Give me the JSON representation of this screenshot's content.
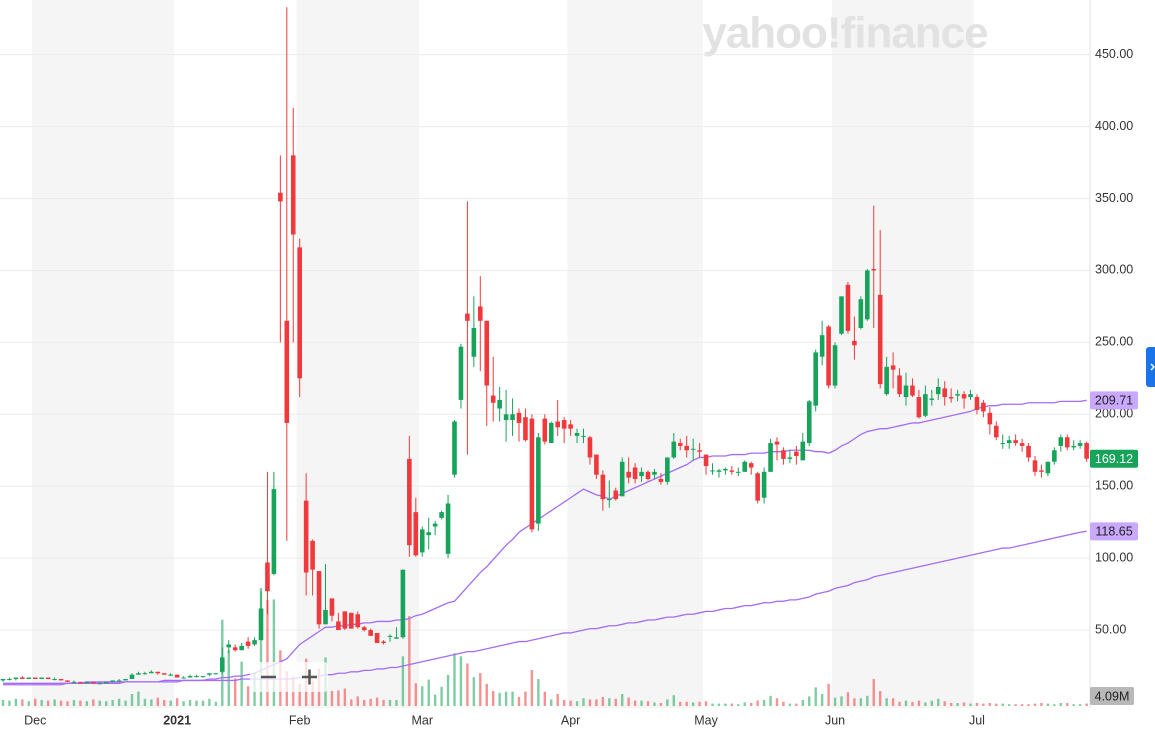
{
  "chart_data": {
    "type": "candlestick",
    "watermark": "yahoo!finance",
    "categories": [
      null,
      null,
      null,
      null,
      null,
      "Dec",
      null,
      null,
      null,
      null,
      null,
      null,
      null,
      null,
      null,
      null,
      null,
      null,
      null,
      null,
      null,
      null,
      null,
      null,
      null,
      null,
      null,
      "2021",
      null,
      null,
      null,
      null,
      null,
      null,
      null,
      null,
      null,
      null,
      null,
      null,
      null,
      null,
      null,
      null,
      null,
      null,
      "Feb",
      null,
      null,
      null,
      null,
      null,
      null,
      null,
      null,
      null,
      null,
      null,
      null,
      null,
      null,
      null,
      null,
      null,
      null,
      "Mar",
      null,
      null,
      null,
      null,
      null,
      null,
      null,
      null,
      null,
      null,
      null,
      null,
      null,
      null,
      null,
      null,
      null,
      null,
      null,
      null,
      null,
      null,
      "Apr",
      null,
      null,
      null,
      null,
      null,
      null,
      null,
      null,
      null,
      null,
      null,
      null,
      null,
      null,
      null,
      null,
      null,
      null,
      null,
      null,
      "May",
      null,
      null,
      null,
      null,
      null,
      null,
      null,
      null,
      null,
      null,
      null,
      null,
      null,
      null,
      null,
      null,
      null,
      null,
      null,
      "Jun",
      null,
      null,
      null,
      null,
      null,
      null,
      null,
      null,
      null,
      null,
      null,
      null,
      null,
      null,
      null,
      null,
      null,
      null,
      null,
      null,
      null,
      "Jul",
      null,
      null,
      null,
      null,
      null,
      null,
      null,
      null,
      null,
      null,
      null,
      null,
      null,
      null,
      null,
      null,
      null
    ],
    "open": [
      15,
      16,
      16,
      17,
      16,
      17,
      16,
      17,
      16,
      16,
      15,
      14,
      14,
      13,
      14,
      13,
      13,
      14,
      15,
      15,
      16,
      19,
      20,
      20,
      21,
      20,
      19,
      19,
      17,
      17,
      18,
      18,
      19,
      20,
      21,
      38,
      38,
      36,
      42,
      40,
      43,
      97,
      89,
      354,
      265,
      380,
      316,
      140,
      112,
      91,
      54,
      72,
      56,
      63,
      62,
      61,
      52,
      50,
      48,
      42,
      46,
      44,
      45,
      169,
      132,
      104,
      116,
      122,
      128,
      103,
      158,
      210,
      270,
      240,
      275,
      265,
      213,
      204,
      196,
      196,
      201,
      198,
      197,
      124,
      197,
      180,
      195,
      196,
      193,
      185,
      185,
      184,
      172,
      158,
      141,
      147,
      143,
      160,
      163,
      157,
      160,
      158,
      155,
      153,
      170,
      180,
      178,
      176,
      175,
      172,
      161,
      160,
      161,
      161,
      160,
      160,
      166,
      159,
      142,
      160,
      181,
      175,
      169,
      174,
      168,
      180,
      206,
      240,
      261,
      220,
      256,
      290,
      251,
      260,
      266,
      301,
      283,
      214,
      234,
      227,
      212,
      220,
      212,
      199,
      210,
      214,
      218,
      212,
      213,
      214,
      212,
      212,
      208,
      201,
      192,
      180,
      180,
      182,
      180,
      178,
      168,
      161,
      159,
      167,
      178,
      184,
      177,
      178,
      180
    ],
    "high": [
      16,
      17,
      17,
      18,
      17,
      17,
      17,
      17,
      17,
      16,
      15,
      15,
      14,
      14,
      14,
      14,
      14,
      15,
      16,
      16,
      20,
      21,
      21,
      22,
      21,
      20,
      20,
      19,
      18,
      19,
      19,
      18,
      20,
      20,
      38,
      43,
      40,
      41,
      45,
      45,
      77,
      160,
      160,
      380,
      483,
      413,
      322,
      159,
      113,
      91,
      96,
      72,
      62,
      63,
      62,
      63,
      53,
      51,
      48,
      43,
      47,
      52,
      92,
      185,
      142,
      122,
      128,
      126,
      133,
      144,
      196,
      249,
      348,
      282,
      296,
      265,
      240,
      219,
      217,
      211,
      204,
      204,
      200,
      187,
      200,
      195,
      210,
      198,
      196,
      190,
      190,
      185,
      172,
      161,
      154,
      149,
      170,
      170,
      166,
      163,
      161,
      162,
      159,
      170,
      187,
      183,
      185,
      183,
      180,
      172,
      166,
      162,
      163,
      164,
      163,
      168,
      167,
      160,
      163,
      183,
      184,
      177,
      175,
      178,
      187,
      210,
      245,
      265,
      262,
      250,
      282,
      292,
      268,
      282,
      301,
      345,
      328,
      240,
      243,
      232,
      229,
      225,
      217,
      220,
      217,
      225,
      223,
      218,
      217,
      216,
      217,
      214,
      210,
      205,
      195,
      186,
      185,
      186,
      183,
      180,
      171,
      165,
      167,
      177,
      186,
      186,
      182,
      182,
      181
    ],
    "low": [
      14,
      15,
      15,
      16,
      16,
      16,
      16,
      16,
      15,
      15,
      14,
      13,
      13,
      13,
      13,
      13,
      13,
      14,
      14,
      15,
      16,
      19,
      19,
      20,
      19,
      19,
      18,
      17,
      17,
      17,
      17,
      17,
      18,
      19,
      20,
      34,
      35,
      36,
      37,
      39,
      43,
      61,
      88,
      250,
      112,
      250,
      212,
      74,
      74,
      51,
      54,
      56,
      50,
      50,
      51,
      51,
      49,
      46,
      41,
      40,
      42,
      44,
      44,
      101,
      101,
      101,
      106,
      116,
      127,
      100,
      156,
      204,
      172,
      233,
      230,
      192,
      195,
      195,
      181,
      185,
      181,
      181,
      118,
      119,
      179,
      180,
      185,
      180,
      185,
      180,
      180,
      165,
      155,
      133,
      135,
      140,
      143,
      152,
      152,
      153,
      154,
      155,
      151,
      151,
      169,
      175,
      170,
      168,
      170,
      158,
      158,
      156,
      158,
      158,
      157,
      160,
      158,
      138,
      138,
      160,
      168,
      165,
      166,
      165,
      168,
      178,
      202,
      234,
      218,
      218,
      255,
      256,
      238,
      259,
      265,
      260,
      218,
      213,
      218,
      212,
      206,
      212,
      197,
      198,
      206,
      210,
      206,
      208,
      209,
      204,
      210,
      200,
      198,
      186,
      182,
      176,
      176,
      178,
      174,
      167,
      157,
      156,
      157,
      165,
      174,
      175,
      175,
      176,
      167
    ],
    "close": [
      16,
      16,
      17,
      16,
      17,
      16,
      17,
      16,
      16,
      15,
      14,
      14,
      13,
      14,
      13,
      13,
      14,
      15,
      15,
      16,
      19,
      20,
      20,
      21,
      20,
      19,
      19,
      17,
      17,
      18,
      18,
      18,
      20,
      20,
      31,
      40,
      36,
      39,
      39,
      43,
      65,
      77,
      148,
      348,
      194,
      325,
      225,
      90,
      92,
      54,
      64,
      60,
      50,
      51,
      51,
      52,
      50,
      46,
      41,
      41,
      46,
      45,
      92,
      109,
      102,
      120,
      118,
      124,
      132,
      138,
      195,
      247,
      265,
      260,
      265,
      220,
      208,
      210,
      200,
      200,
      194,
      182,
      120,
      184,
      181,
      194,
      191,
      190,
      190,
      187,
      185,
      170,
      158,
      141,
      141,
      141,
      167,
      156,
      155,
      160,
      155,
      160,
      153,
      170,
      181,
      178,
      175,
      176,
      174,
      164,
      161,
      161,
      162,
      160,
      160,
      167,
      163,
      140,
      160,
      180,
      179,
      169,
      170,
      171,
      181,
      209,
      243,
      255,
      220,
      248,
      282,
      258,
      248,
      280,
      300,
      300,
      221,
      233,
      231,
      214,
      220,
      213,
      198,
      214,
      211,
      219,
      212,
      211,
      214,
      211,
      214,
      203,
      202,
      193,
      184,
      180,
      182,
      180,
      178,
      170,
      160,
      160,
      167,
      175,
      184,
      177,
      178,
      180,
      169.12
    ],
    "volume": {
      "values": [
        10,
        9,
        12,
        11,
        8,
        12,
        10,
        9,
        11,
        9,
        8,
        10,
        9,
        8,
        11,
        9,
        8,
        10,
        12,
        9,
        20,
        24,
        12,
        11,
        14,
        10,
        9,
        13,
        8,
        10,
        9,
        9,
        12,
        7,
        144,
        93,
        46,
        74,
        33,
        56,
        197,
        177,
        178,
        93,
        58,
        50,
        37,
        79,
        42,
        62,
        81,
        25,
        26,
        29,
        11,
        16,
        10,
        12,
        14,
        10,
        10,
        10,
        83,
        150,
        38,
        33,
        44,
        19,
        32,
        52,
        88,
        83,
        71,
        48,
        55,
        37,
        25,
        22,
        24,
        24,
        15,
        24,
        60,
        45,
        24,
        11,
        20,
        10,
        9,
        8,
        13,
        11,
        11,
        15,
        13,
        12,
        20,
        14,
        9,
        9,
        8,
        6,
        5,
        11,
        18,
        7,
        7,
        6,
        7,
        8,
        4,
        4,
        4,
        4,
        3,
        6,
        5,
        9,
        10,
        17,
        13,
        7,
        4,
        4,
        10,
        16,
        31,
        20,
        37,
        14,
        16,
        23,
        13,
        13,
        17,
        45,
        25,
        13,
        13,
        7,
        9,
        7,
        9,
        6,
        9,
        12,
        8,
        5,
        5,
        6,
        4,
        5,
        4,
        5,
        4,
        4,
        3,
        3,
        3,
        3,
        4,
        5,
        4,
        3,
        5,
        5,
        3,
        3,
        4.09
      ],
      "last_label": "4.09M"
    },
    "moving_averages": [
      {
        "color": "#a66cf5",
        "values": [
          13,
          13,
          13,
          13,
          13,
          13,
          13,
          13,
          13,
          13,
          13,
          13,
          13,
          14,
          14,
          14,
          14,
          14,
          14,
          14,
          14,
          14,
          14,
          14,
          14,
          15,
          15,
          15,
          15,
          15,
          15,
          15,
          16,
          16,
          17,
          17,
          18,
          18,
          19,
          20,
          22,
          24,
          26,
          28,
          30,
          35,
          40,
          43,
          46,
          49,
          52,
          52,
          53,
          53,
          54,
          54,
          55,
          55,
          56,
          56,
          56,
          57,
          57,
          58,
          60,
          61,
          63,
          65,
          67,
          69,
          70,
          75,
          80,
          85,
          90,
          94,
          99,
          104,
          109,
          113,
          118,
          121,
          124,
          127,
          130,
          133,
          136,
          139,
          142,
          145,
          148,
          146,
          144,
          143,
          141,
          143,
          145,
          147,
          149,
          151,
          153,
          155,
          157,
          159,
          161,
          163,
          165,
          168,
          170,
          170,
          171,
          171,
          171,
          172,
          172,
          172,
          173,
          173,
          173,
          174,
          174,
          174,
          175,
          175,
          175,
          175,
          174,
          174,
          173,
          175,
          178,
          180,
          183,
          186,
          188,
          189,
          190,
          190,
          191,
          192,
          193,
          194,
          194,
          195,
          196,
          197,
          198,
          199,
          200,
          201,
          202,
          204,
          205,
          206,
          206,
          207,
          207,
          207,
          207,
          208,
          208,
          208,
          208,
          208,
          209,
          209,
          209,
          209,
          209.71
        ]
      },
      {
        "color": "#a66cf5",
        "values": [
          12,
          12,
          12,
          12,
          12,
          12,
          12,
          12,
          12,
          12,
          13,
          13,
          13,
          13,
          13,
          13,
          13,
          13,
          13,
          14,
          14,
          14,
          14,
          14,
          14,
          14,
          14,
          14,
          15,
          15,
          15,
          15,
          15,
          15,
          15,
          15,
          15,
          16,
          16,
          16,
          16,
          16,
          16,
          16,
          16,
          16,
          17,
          17,
          18,
          18,
          19,
          19,
          20,
          20,
          21,
          21,
          22,
          22,
          23,
          23,
          24,
          24,
          25,
          26,
          27,
          28,
          29,
          30,
          31,
          32,
          33,
          34,
          35,
          35,
          36,
          37,
          38,
          39,
          40,
          41,
          42,
          42,
          43,
          44,
          45,
          46,
          47,
          48,
          48,
          49,
          50,
          51,
          51,
          52,
          53,
          53,
          54,
          55,
          55,
          56,
          57,
          57,
          58,
          59,
          59,
          60,
          61,
          61,
          62,
          63,
          63,
          64,
          65,
          65,
          66,
          67,
          67,
          68,
          69,
          69,
          70,
          70,
          71,
          71,
          72,
          73,
          75,
          76,
          77,
          79,
          80,
          81,
          83,
          84,
          85,
          87,
          88,
          89,
          90,
          91,
          92,
          93,
          94,
          95,
          96,
          97,
          98,
          99,
          100,
          101,
          102,
          103,
          104,
          105,
          106,
          107,
          107,
          108,
          109,
          110,
          111,
          112,
          113,
          114,
          115,
          116,
          117,
          118,
          118.65
        ]
      }
    ],
    "up_color": "#17a35a",
    "down_color": "#f0393d",
    "ylim": [
      0,
      488
    ],
    "yticks": [
      {
        "value": 50,
        "label": "50.00"
      },
      {
        "value": 100,
        "label": "100.00"
      },
      {
        "value": 150,
        "label": "150.00"
      },
      {
        "value": 200,
        "label": "200.00"
      },
      {
        "value": 250,
        "label": "250.00"
      },
      {
        "value": 300,
        "label": "300.00"
      },
      {
        "value": 350,
        "label": "350.00"
      },
      {
        "value": 400,
        "label": "400.00"
      },
      {
        "value": 450,
        "label": "450.00"
      }
    ],
    "grid": true
  }
}
